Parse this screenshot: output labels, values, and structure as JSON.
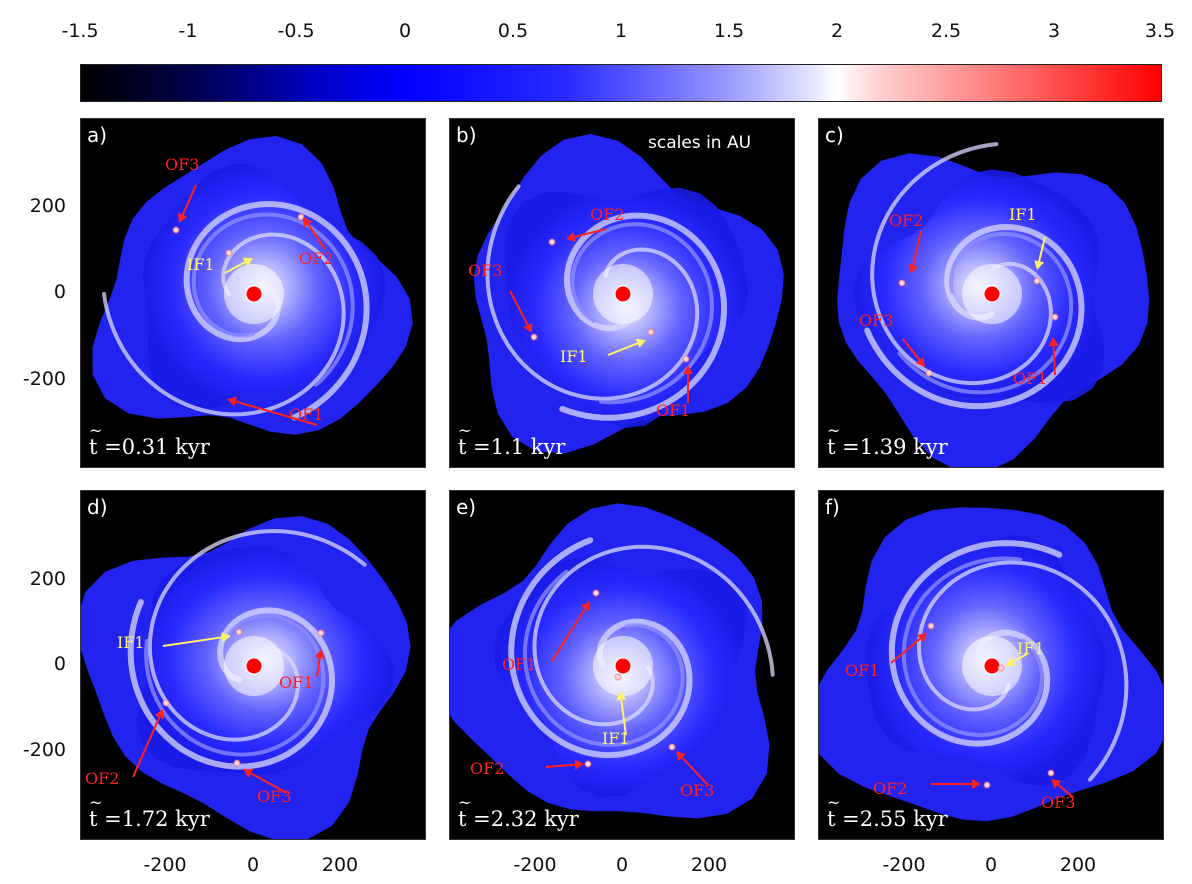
{
  "colorbar": {
    "ticks": [
      "-1.5",
      "-1",
      "-0.5",
      "0",
      "0.5",
      "1",
      "1.5",
      "2",
      "2.5",
      "3",
      "3.5"
    ],
    "range": [
      -1.5,
      3.5
    ],
    "colors": [
      "#000000",
      "#0000ff",
      "#ffffff",
      "#ff0000"
    ]
  },
  "axes": {
    "y_ticks": [
      "200",
      "0",
      "-200"
    ],
    "x_ticks": [
      "-200",
      "0",
      "200"
    ]
  },
  "panels": [
    {
      "label": "a)",
      "time": "=0.31 kyr",
      "extra": "",
      "annotations": [
        {
          "text": "OF3",
          "color": "red"
        },
        {
          "text": "OF2",
          "color": "red"
        },
        {
          "text": "IF1",
          "color": "yellow"
        },
        {
          "text": "OF1",
          "color": "red"
        }
      ]
    },
    {
      "label": "b)",
      "time": "=1.1 kyr",
      "extra": "scales in AU",
      "annotations": [
        {
          "text": "OF2",
          "color": "red"
        },
        {
          "text": "OF3",
          "color": "red"
        },
        {
          "text": "IF1",
          "color": "yellow"
        },
        {
          "text": "OF1",
          "color": "red"
        }
      ]
    },
    {
      "label": "c)",
      "time": "=1.39 kyr",
      "extra": "",
      "annotations": [
        {
          "text": "OF2",
          "color": "red"
        },
        {
          "text": "IF1",
          "color": "yellow"
        },
        {
          "text": "OF3",
          "color": "red"
        },
        {
          "text": "OF1",
          "color": "red"
        }
      ]
    },
    {
      "label": "d)",
      "time": "=1.72 kyr",
      "extra": "",
      "annotations": [
        {
          "text": "IF1",
          "color": "yellow"
        },
        {
          "text": "OF1",
          "color": "red"
        },
        {
          "text": "OF2",
          "color": "red"
        },
        {
          "text": "OF3",
          "color": "red"
        }
      ]
    },
    {
      "label": "e)",
      "time": "=2.32 kyr",
      "extra": "",
      "annotations": [
        {
          "text": "OF1",
          "color": "red"
        },
        {
          "text": "IF1",
          "color": "yellow"
        },
        {
          "text": "OF2",
          "color": "red"
        },
        {
          "text": "OF3",
          "color": "red"
        }
      ]
    },
    {
      "label": "f)",
      "time": "=2.55 kyr",
      "extra": "",
      "annotations": [
        {
          "text": "OF1",
          "color": "red"
        },
        {
          "text": "IF1",
          "color": "yellow"
        },
        {
          "text": "OF2",
          "color": "red"
        },
        {
          "text": "OF3",
          "color": "red"
        }
      ]
    }
  ],
  "time_symbol": "t"
}
